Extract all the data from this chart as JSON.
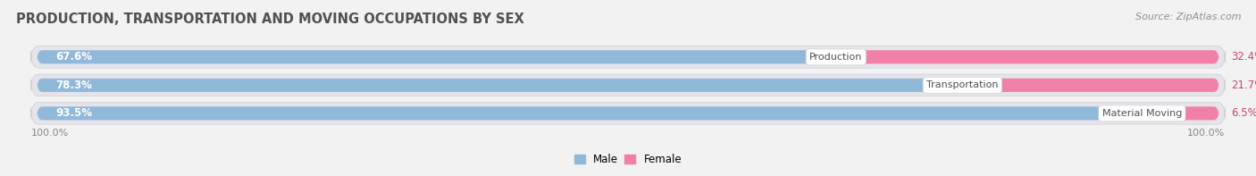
{
  "title": "PRODUCTION, TRANSPORTATION AND MOVING OCCUPATIONS BY SEX",
  "source": "Source: ZipAtlas.com",
  "categories": [
    "Material Moving",
    "Transportation",
    "Production"
  ],
  "male_values": [
    93.5,
    78.3,
    67.6
  ],
  "female_values": [
    6.5,
    21.7,
    32.4
  ],
  "male_color": "#90b8d8",
  "female_color": "#f080a8",
  "bg_color": "#f2f2f2",
  "row_bg_color": "#e4e4ea",
  "title_fontsize": 10.5,
  "source_fontsize": 8,
  "axis_label_fontsize": 8,
  "bar_label_fontsize": 8.5,
  "category_fontsize": 8,
  "left_axis_label": "100.0%",
  "right_axis_label": "100.0%"
}
